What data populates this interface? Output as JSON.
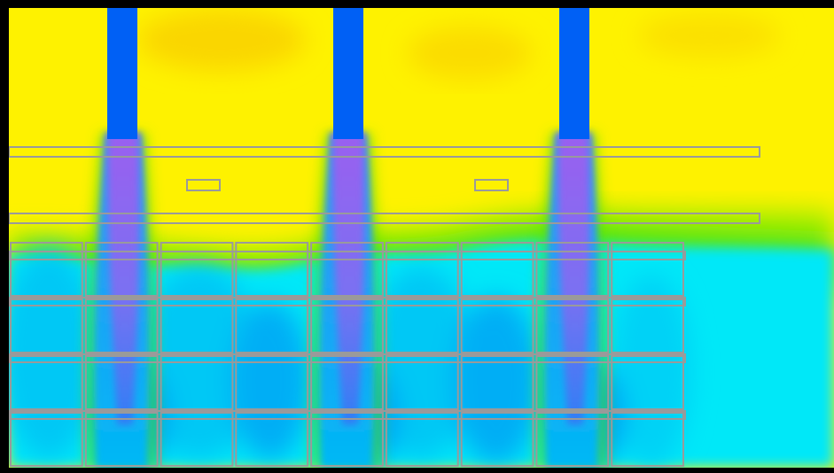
{
  "scene": {
    "kind": "cfd-temperature-contour",
    "colors": {
      "frame": "#000000",
      "ambient_warm": "#fef200",
      "ambient_warm_dark": "#fad600",
      "transition_green": "#57e60a",
      "transition_lime": "#a8ee05",
      "cool_cyan": "#00e8f8",
      "cool_sky": "#00c8f5",
      "cool_deep": "#00a5f5",
      "supply_jet": "#0060f5",
      "plume_core": "#9a60f0",
      "plume_edge": "#2a90f5",
      "outline_gray": "#9a9a9a"
    },
    "supply_jets": [
      {
        "name": "supply-jet-1"
      },
      {
        "name": "supply-jet-2"
      },
      {
        "name": "supply-jet-3"
      }
    ],
    "equipment": {
      "upper_duct": "upper-duct",
      "lower_duct": "lower-duct",
      "small_fixtures": [
        "fixture-left",
        "fixture-right"
      ],
      "rack_grid_columns": 9,
      "rack_grid_rows": 4
    }
  }
}
